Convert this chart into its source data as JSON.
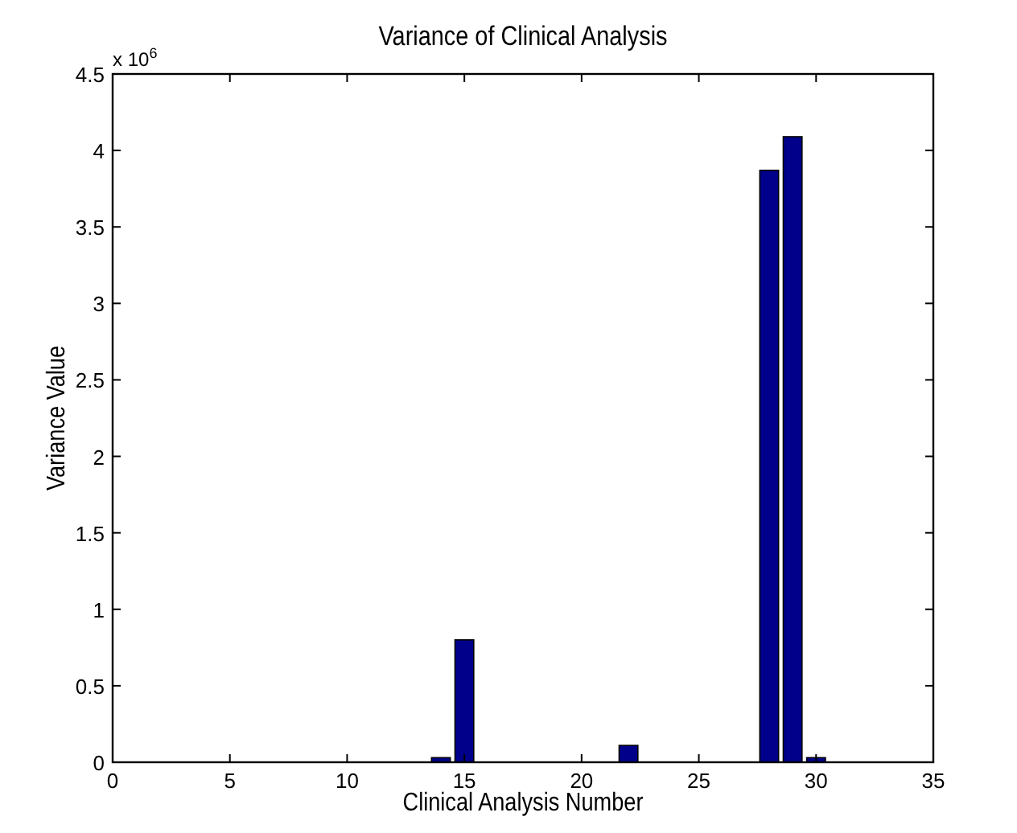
{
  "chart_data": {
    "type": "bar",
    "title": "Variance of Clinical Analysis",
    "xlabel": "Clinical Analysis Number",
    "ylabel": "Variance Value",
    "annotations": [
      "x 10$^{6}$"
    ],
    "x": [
      1,
      2,
      3,
      4,
      5,
      6,
      7,
      8,
      9,
      10,
      11,
      12,
      13,
      14,
      15,
      16,
      17,
      18,
      19,
      20,
      21,
      22,
      23,
      24,
      25,
      26,
      27,
      28,
      29,
      30,
      31,
      32,
      33
    ],
    "values": [
      0,
      0,
      0,
      0,
      0,
      0,
      0,
      0,
      0,
      0,
      0,
      0,
      0,
      0.03,
      0.8,
      0,
      0,
      0,
      0,
      0,
      0,
      0.11,
      0,
      0,
      0,
      0,
      0,
      3.87,
      4.09,
      0.03,
      0,
      0,
      0
    ],
    "color": "#00008b",
    "xlim": [
      0,
      35
    ],
    "xticks": [
      0,
      5,
      10,
      15,
      20,
      25,
      30,
      35
    ],
    "ylim": [
      0,
      4.5
    ],
    "yticks": [
      0,
      0.5,
      1,
      1.5,
      2,
      2.5,
      3,
      3.5,
      4,
      4.5
    ],
    "grid": false
  }
}
